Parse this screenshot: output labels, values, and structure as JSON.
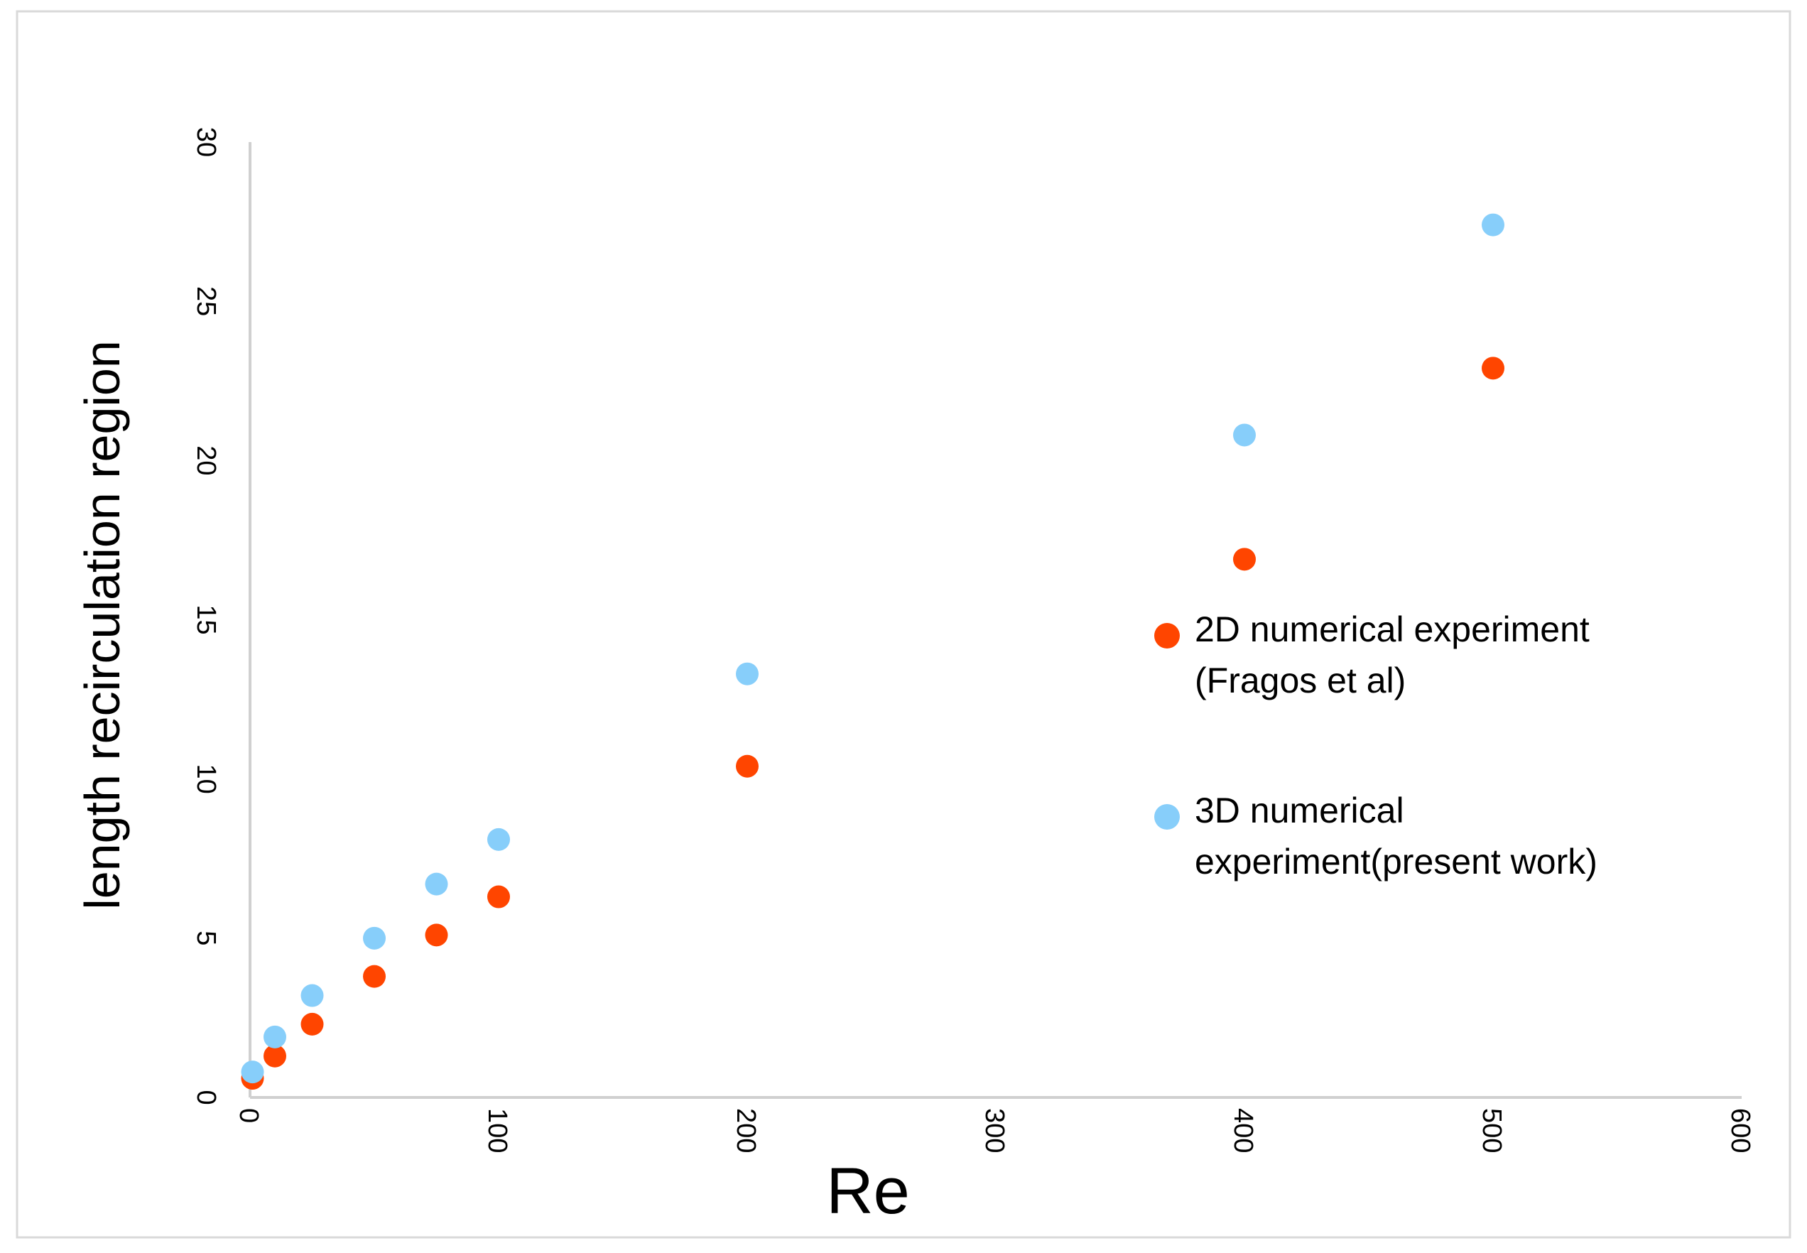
{
  "chart_data": {
    "type": "scatter",
    "title": "",
    "xlabel": "Re",
    "ylabel": "length recirculation region",
    "xlim": [
      0,
      600
    ],
    "ylim": [
      0,
      30
    ],
    "xticks": [
      0,
      100,
      200,
      300,
      400,
      500,
      600
    ],
    "yticks": [
      0,
      5,
      10,
      15,
      20,
      25,
      30
    ],
    "grid": false,
    "legend_position": "right",
    "series": [
      {
        "name": "2D numerical experiment (Fragos et al)",
        "legend_lines": [
          "2D numerical experiment",
          "(Fragos et al)"
        ],
        "color": "#FF4500",
        "x": [
          1,
          10,
          25,
          50,
          75,
          100,
          200,
          400,
          500
        ],
        "y": [
          0.6,
          1.3,
          2.3,
          3.8,
          5.1,
          6.3,
          10.4,
          16.9,
          22.9
        ]
      },
      {
        "name": "3D numerical experiment(present work)",
        "legend_lines": [
          "3D numerical",
          "experiment(present work)"
        ],
        "color": "#87CEFA",
        "x": [
          1,
          10,
          25,
          50,
          75,
          100,
          200,
          400,
          500
        ],
        "y": [
          0.8,
          1.9,
          3.2,
          5.0,
          6.7,
          8.1,
          13.3,
          20.8,
          27.4
        ]
      }
    ]
  }
}
